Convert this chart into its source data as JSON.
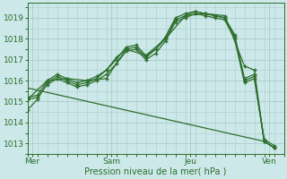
{
  "xlabel": "Pression niveau de la mer( hPa )",
  "bg_color": "#cce8e8",
  "grid_color": "#aacccc",
  "line_color": "#2d6e2d",
  "ylim": [
    1012.5,
    1019.7
  ],
  "xlim": [
    0,
    52
  ],
  "xticks": [
    1,
    17,
    33,
    49
  ],
  "xticklabels": [
    "Mer",
    "Sam",
    "Jeu",
    "Ven"
  ],
  "series": [
    {
      "x": [
        0,
        2,
        4,
        6,
        8,
        10,
        12,
        14,
        16,
        18,
        20,
        22,
        24,
        26,
        28,
        30,
        32,
        34,
        36,
        38,
        40,
        42,
        44,
        46,
        48,
        50
      ],
      "y": [
        1014.6,
        1015.1,
        1015.9,
        1016.2,
        1016.0,
        1015.8,
        1015.9,
        1016.1,
        1016.5,
        1017.1,
        1017.5,
        1017.6,
        1017.1,
        1017.5,
        1018.1,
        1019.0,
        1019.2,
        1019.3,
        1019.2,
        1019.1,
        1019.0,
        1018.2,
        1016.1,
        1016.3,
        1013.1,
        1012.8
      ]
    },
    {
      "x": [
        0,
        2,
        4,
        6,
        8,
        10,
        12,
        14,
        16,
        18,
        20,
        22,
        24,
        26,
        28,
        30,
        32,
        34,
        36,
        38,
        40,
        42,
        44,
        46,
        48,
        50
      ],
      "y": [
        1015.1,
        1015.2,
        1015.8,
        1016.1,
        1015.9,
        1015.7,
        1015.8,
        1016.0,
        1016.3,
        1016.8,
        1017.4,
        1017.5,
        1017.0,
        1017.3,
        1017.9,
        1018.8,
        1019.0,
        1019.2,
        1019.1,
        1019.0,
        1018.9,
        1018.0,
        1015.9,
        1016.1,
        1013.2,
        1012.9
      ]
    },
    {
      "x": [
        0,
        2,
        4,
        6,
        8,
        10,
        12,
        14,
        16,
        18,
        20,
        22,
        24,
        26,
        28,
        30,
        32,
        34,
        36,
        38,
        40,
        42,
        44,
        46,
        48,
        50
      ],
      "y": [
        1015.2,
        1015.3,
        1016.0,
        1016.3,
        1016.1,
        1015.9,
        1016.0,
        1016.2,
        1016.5,
        1017.0,
        1017.6,
        1017.7,
        1017.2,
        1017.5,
        1018.0,
        1018.9,
        1019.1,
        1019.3,
        1019.2,
        1019.1,
        1019.0,
        1018.1,
        1016.0,
        1016.2,
        1013.1,
        1012.8
      ]
    },
    {
      "x": [
        0,
        4,
        8,
        12,
        16,
        20,
        24,
        28,
        32,
        36,
        40,
        44,
        46,
        48,
        50
      ],
      "y": [
        1015.1,
        1016.0,
        1016.1,
        1016.0,
        1016.1,
        1017.5,
        1017.2,
        1018.0,
        1019.1,
        1019.2,
        1019.1,
        1016.7,
        1016.5,
        1013.1,
        1012.8
      ]
    }
  ],
  "diagonal_line": {
    "x": [
      0,
      48
    ],
    "y": [
      1015.65,
      1013.1
    ]
  },
  "yticks": [
    1013,
    1014,
    1015,
    1016,
    1017,
    1018,
    1019
  ]
}
